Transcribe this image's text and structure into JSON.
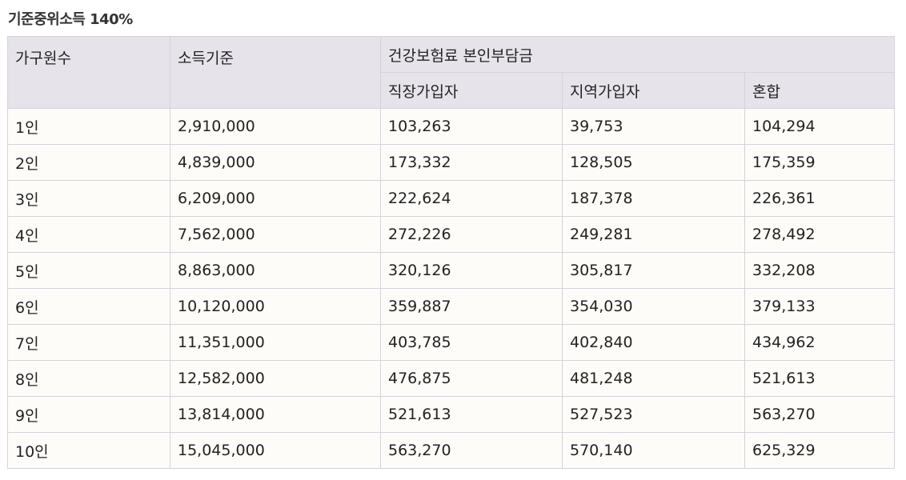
{
  "caption": "기준중위소득 140%",
  "table": {
    "headers": {
      "household": "가구원수",
      "income": "소득기준",
      "premium_group": "건강보험료 본인부담금",
      "employee": "직장가입자",
      "regional": "지역가입자",
      "mixed": "혼합"
    },
    "rows": [
      [
        "1인",
        "2,910,000",
        "103,263",
        "39,753",
        "104,294"
      ],
      [
        "2인",
        "4,839,000",
        "173,332",
        "128,505",
        "175,359"
      ],
      [
        "3인",
        "6,209,000",
        "222,624",
        "187,378",
        "226,361"
      ],
      [
        "4인",
        "7,562,000",
        "272,226",
        "249,281",
        "278,492"
      ],
      [
        "5인",
        "8,863,000",
        "320,126",
        "305,817",
        "332,208"
      ],
      [
        "6인",
        "10,120,000",
        "359,887",
        "354,030",
        "379,133"
      ],
      [
        "7인",
        "11,351,000",
        "403,785",
        "402,840",
        "434,962"
      ],
      [
        "8인",
        "12,582,000",
        "476,875",
        "481,248",
        "521,613"
      ],
      [
        "9인",
        "13,814,000",
        "521,613",
        "527,523",
        "563,270"
      ],
      [
        "10인",
        "15,045,000",
        "563,270",
        "570,140",
        "625,329"
      ]
    ]
  }
}
